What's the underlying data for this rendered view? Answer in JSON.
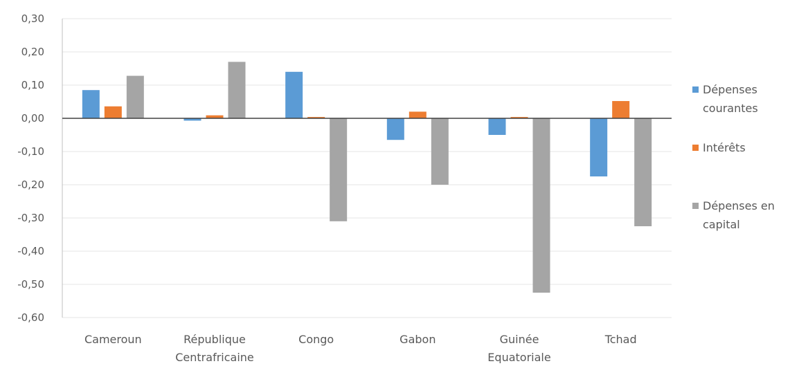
{
  "chart_data": {
    "type": "bar",
    "title": "",
    "xlabel": "",
    "ylabel": "",
    "categories": [
      [
        "Cameroun"
      ],
      [
        "République",
        "Centrafricaine"
      ],
      [
        "Congo"
      ],
      [
        "Gabon"
      ],
      [
        "Guinée",
        "Equatoriale"
      ],
      [
        "Tchad"
      ]
    ],
    "series": [
      {
        "name": [
          "Dépenses",
          "courantes"
        ],
        "color": "#5B9BD5",
        "values": [
          0.085,
          -0.007,
          0.14,
          -0.065,
          -0.05,
          -0.175
        ]
      },
      {
        "name": [
          "Intérêts"
        ],
        "color": "#ED7D31",
        "values": [
          0.036,
          0.009,
          0.004,
          0.02,
          0.004,
          0.052
        ]
      },
      {
        "name": [
          "Dépenses en",
          "capital"
        ],
        "color": "#A5A5A5",
        "values": [
          0.128,
          0.17,
          -0.31,
          -0.2,
          -0.525,
          -0.325
        ]
      }
    ],
    "ylim": [
      -0.6,
      0.3
    ],
    "yticks": [
      0.3,
      0.2,
      0.1,
      0.0,
      -0.1,
      -0.2,
      -0.3,
      -0.4,
      -0.5,
      -0.6
    ],
    "ytick_labels": [
      "0,30",
      "0,20",
      "0,10",
      "0,00",
      "-0,10",
      "-0,20",
      "-0,30",
      "-0,40",
      "-0,50",
      "-0,60"
    ],
    "grid": true,
    "legend": "right"
  }
}
